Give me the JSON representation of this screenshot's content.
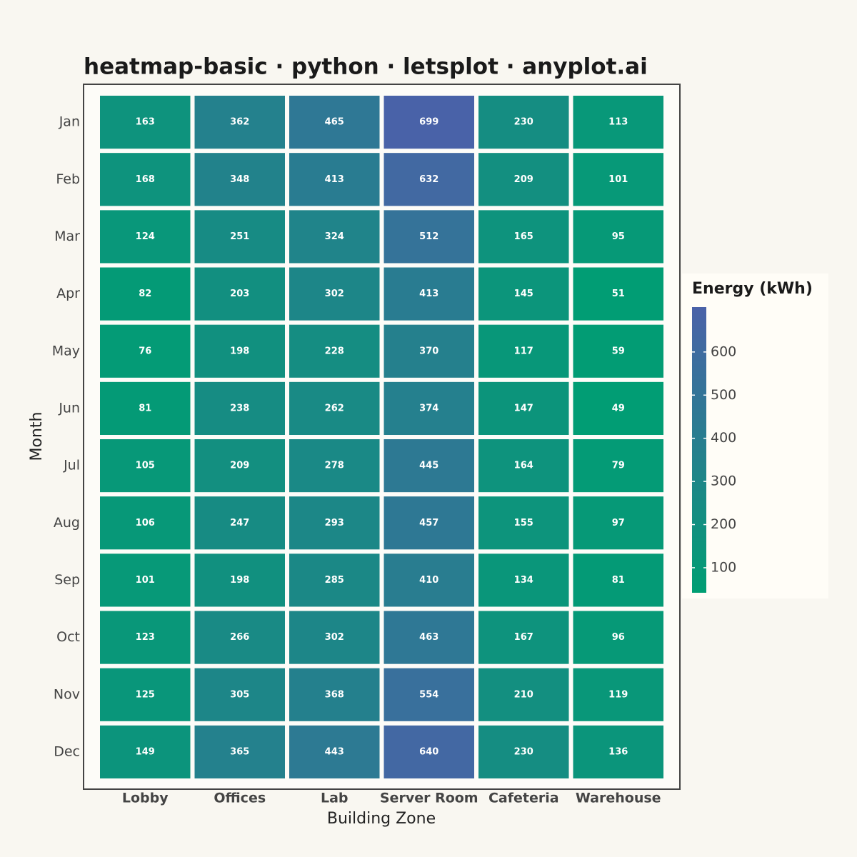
{
  "chart_data": {
    "type": "heatmap",
    "title": "heatmap-basic · python · letsplot · anyplot.ai",
    "x_label": "Building Zone",
    "y_label": "Month",
    "x_categories": [
      "Lobby",
      "Offices",
      "Lab",
      "Server Room",
      "Cafeteria",
      "Warehouse"
    ],
    "y_categories": [
      "Jan",
      "Feb",
      "Mar",
      "Apr",
      "May",
      "Jun",
      "Jul",
      "Aug",
      "Sep",
      "Oct",
      "Nov",
      "Dec"
    ],
    "values": [
      [
        163,
        362,
        465,
        699,
        230,
        113
      ],
      [
        168,
        348,
        413,
        632,
        209,
        101
      ],
      [
        124,
        251,
        324,
        512,
        165,
        95
      ],
      [
        82,
        203,
        302,
        413,
        145,
        51
      ],
      [
        76,
        198,
        228,
        370,
        117,
        59
      ],
      [
        81,
        238,
        262,
        374,
        147,
        49
      ],
      [
        105,
        209,
        278,
        445,
        164,
        79
      ],
      [
        106,
        247,
        293,
        457,
        155,
        97
      ],
      [
        101,
        198,
        285,
        410,
        134,
        81
      ],
      [
        123,
        266,
        302,
        463,
        167,
        96
      ],
      [
        125,
        305,
        368,
        554,
        210,
        119
      ],
      [
        149,
        365,
        443,
        640,
        230,
        136
      ]
    ],
    "colorbar_title": "Energy (kWh)",
    "zlim": [
      42,
      704
    ],
    "zticks": [
      100,
      200,
      300,
      400,
      500,
      600
    ],
    "colors": [
      "#009e73",
      "#4a62a8"
    ]
  }
}
